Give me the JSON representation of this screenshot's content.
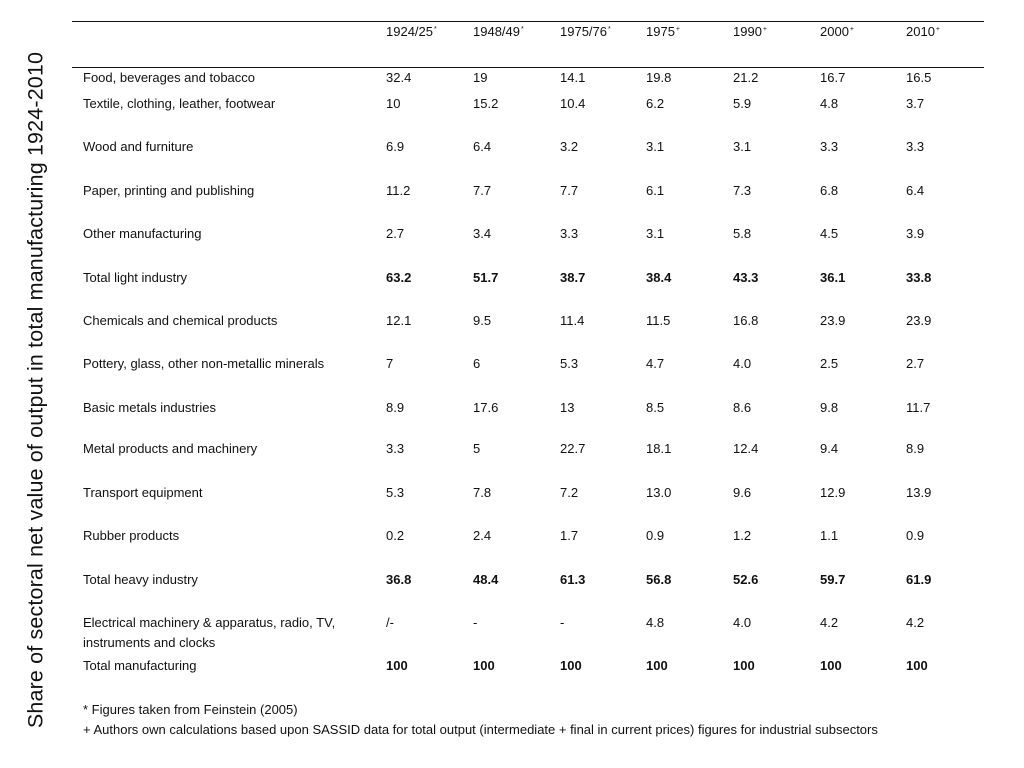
{
  "side_title": "Share of sectoral net value of output in total manufacturing 1924-2010",
  "columns": [
    {
      "label": "1924/25",
      "mark": "*"
    },
    {
      "label": "1948/49",
      "mark": "*"
    },
    {
      "label": "1975/76",
      "mark": "*"
    },
    {
      "label": "1975",
      "mark": "+"
    },
    {
      "label": "1990",
      "mark": "+"
    },
    {
      "label": "2000",
      "mark": "+"
    },
    {
      "label": "2010",
      "mark": "+"
    }
  ],
  "rows": [
    {
      "label": "Food, beverages and tobacco",
      "bold": false,
      "values": [
        "32.4",
        "19",
        "14.1",
        "19.8",
        "21.2",
        "16.7",
        "16.5"
      ]
    },
    {
      "label": "Textile, clothing, leather, footwear",
      "bold": false,
      "values": [
        "10",
        "15.2",
        "10.4",
        "6.2",
        "5.9",
        "4.8",
        "3.7"
      ]
    },
    {
      "label": "Wood and furniture",
      "bold": false,
      "values": [
        "6.9",
        "6.4",
        "3.2",
        "3.1",
        "3.1",
        "3.3",
        "3.3"
      ]
    },
    {
      "label": "Paper, printing and publishing",
      "bold": false,
      "values": [
        "11.2",
        "7.7",
        "7.7",
        "6.1",
        "7.3",
        "6.8",
        "6.4"
      ]
    },
    {
      "label": "Other manufacturing",
      "bold": false,
      "values": [
        "2.7",
        "3.4",
        "3.3",
        "3.1",
        "5.8",
        "4.5",
        "3.9"
      ]
    },
    {
      "label": "Total light industry",
      "bold": true,
      "values": [
        "63.2",
        "51.7",
        "38.7",
        "38.4",
        "43.3",
        "36.1",
        "33.8"
      ]
    },
    {
      "label": "Chemicals and chemical products",
      "bold": false,
      "values": [
        "12.1",
        "9.5",
        "11.4",
        "11.5",
        "16.8",
        "23.9",
        "23.9"
      ]
    },
    {
      "label": "Pottery, glass, other non-metallic minerals",
      "bold": false,
      "values": [
        "7",
        "6",
        "5.3",
        "4.7",
        "4.0",
        "2.5",
        "2.7"
      ]
    },
    {
      "label": "Basic metals industries",
      "bold": false,
      "values": [
        "8.9",
        "17.6",
        "13",
        "8.5",
        "8.6",
        "9.8",
        "11.7"
      ]
    },
    {
      "label": "Metal products and machinery",
      "bold": false,
      "values": [
        "3.3",
        "5",
        "22.7",
        "18.1",
        "12.4",
        "9.4",
        "8.9"
      ]
    },
    {
      "label": "Transport equipment",
      "bold": false,
      "values": [
        "5.3",
        "7.8",
        "7.2",
        "13.0",
        "9.6",
        "12.9",
        "13.9"
      ]
    },
    {
      "label": "Rubber products",
      "bold": false,
      "values": [
        "0.2",
        "2.4",
        "1.7",
        "0.9",
        "1.2",
        "1.1",
        "0.9"
      ]
    },
    {
      "label": "Total heavy industry",
      "bold": true,
      "values": [
        "36.8",
        "48.4",
        "61.3",
        "56.8",
        "52.6",
        "59.7",
        "61.9"
      ]
    },
    {
      "label": "Electrical machinery & apparatus, radio, TV, instruments and clocks",
      "bold": false,
      "values": [
        "/-",
        "-",
        "-",
        "4.8",
        "4.0",
        "4.2",
        "4.2"
      ]
    },
    {
      "label": "Total manufacturing",
      "bold": true,
      "values": [
        "100",
        "100",
        "100",
        "100",
        "100",
        "100",
        "100"
      ]
    }
  ],
  "notes": [
    "* Figures taken from Feinstein (2005)",
    "+ Authors own calculations based upon SASSID data for total output (intermediate + final in current prices) figures for industrial subsectors"
  ]
}
